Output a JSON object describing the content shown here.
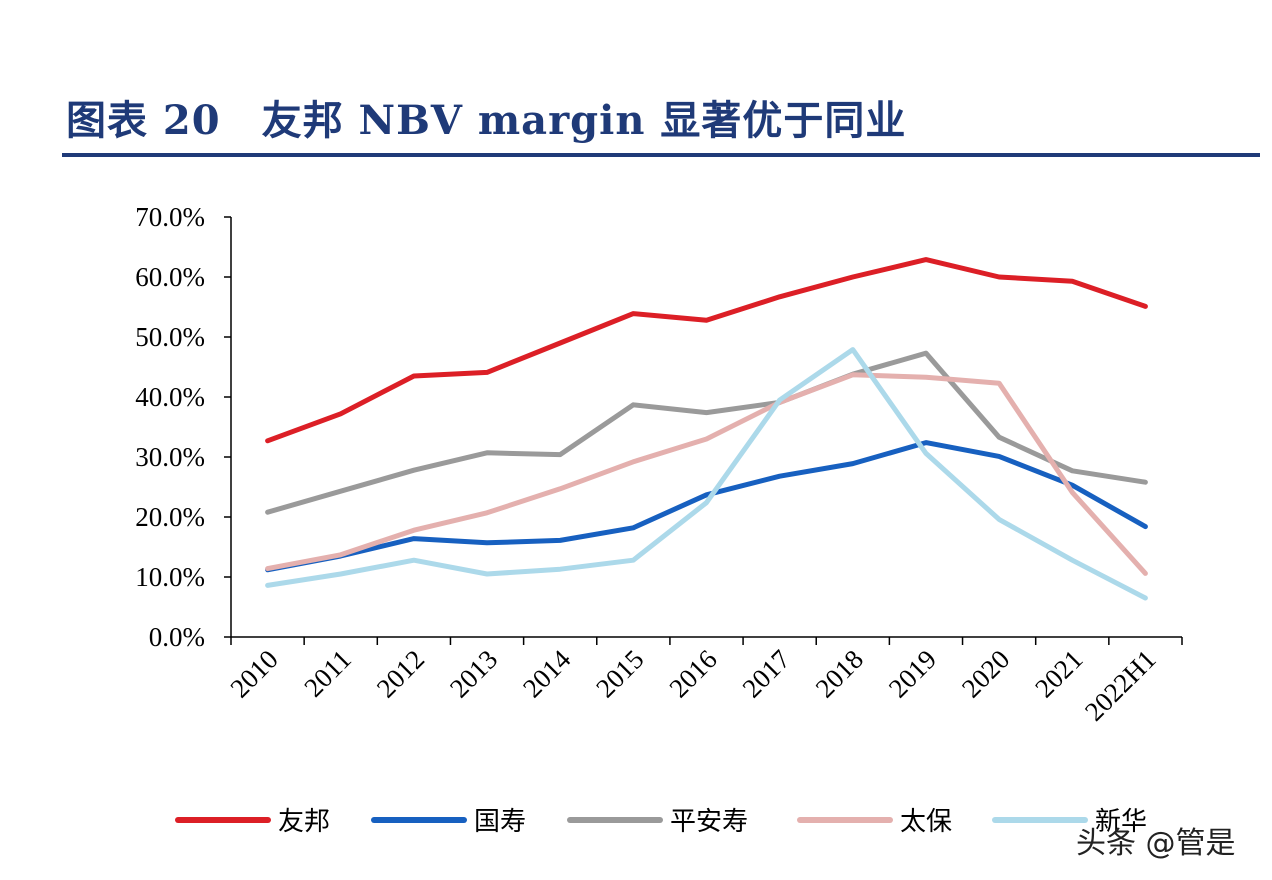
{
  "header": {
    "title": "图表 20　友邦 NBV margin 显著优于同业"
  },
  "watermark": {
    "text": "头条 @管是"
  },
  "chart_data": {
    "type": "line",
    "title": "图表 20　友邦 NBV margin 显著优于同业",
    "xlabel": "",
    "ylabel": "",
    "ylim": [
      0,
      70
    ],
    "yticks": [
      0,
      10,
      20,
      30,
      40,
      50,
      60,
      70
    ],
    "ytick_labels": [
      "0.0%",
      "10.0%",
      "20.0%",
      "30.0%",
      "40.0%",
      "50.0%",
      "60.0%",
      "70.0%"
    ],
    "categories": [
      "2010",
      "2011",
      "2012",
      "2013",
      "2014",
      "2015",
      "2016",
      "2017",
      "2018",
      "2019",
      "2020",
      "2021",
      "2022H1"
    ],
    "grid": false,
    "legend_position": "bottom",
    "series": [
      {
        "name": "友邦",
        "color": "#dc1f26",
        "values": [
          32.7,
          37.2,
          43.5,
          44.1,
          49.0,
          53.9,
          52.8,
          56.7,
          60.0,
          62.9,
          60.0,
          59.3,
          55.1
        ]
      },
      {
        "name": "国寿",
        "color": "#1760c0",
        "values": [
          11.2,
          13.5,
          16.4,
          15.7,
          16.1,
          18.2,
          23.7,
          26.8,
          28.9,
          32.4,
          30.1,
          25.3,
          18.4
        ]
      },
      {
        "name": "平安寿",
        "color": "#9a9a9a",
        "values": [
          20.8,
          24.3,
          27.8,
          30.7,
          30.4,
          38.7,
          37.4,
          39.1,
          43.8,
          47.3,
          33.3,
          27.7,
          25.8
        ]
      },
      {
        "name": "太保",
        "color": "#e4b0ae",
        "values": [
          11.4,
          13.7,
          17.8,
          20.7,
          24.7,
          29.2,
          33.0,
          39.1,
          43.7,
          43.3,
          42.3,
          24.1,
          10.6
        ]
      },
      {
        "name": "新华",
        "color": "#acd9ea",
        "values": [
          8.6,
          10.5,
          12.8,
          10.5,
          11.3,
          12.8,
          22.4,
          39.5,
          47.9,
          30.6,
          19.6,
          12.8,
          6.5
        ]
      }
    ]
  }
}
